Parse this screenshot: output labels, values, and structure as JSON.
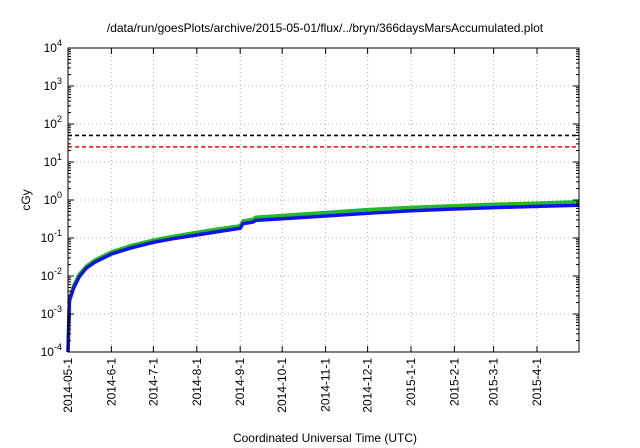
{
  "chart_data": {
    "type": "line",
    "title": "/data/run/goesPlots/archive/2015-05-01/flux/../bryn/366daysMarsAccumulated.plot",
    "xlabel": "Coordinated Universal Time (UTC)",
    "ylabel": "cGy",
    "x_range": [
      "2014-05-01",
      "2015-05-01"
    ],
    "y_scale": "log",
    "ylim": [
      0.0001,
      10000
    ],
    "grid": true,
    "legend": "none",
    "x_ticks": [
      {
        "date": "2014-05-01",
        "label": "2014-05-1"
      },
      {
        "date": "2014-06-01",
        "label": "2014-6-1"
      },
      {
        "date": "2014-07-01",
        "label": "2014-7-1"
      },
      {
        "date": "2014-08-01",
        "label": "2014-8-1"
      },
      {
        "date": "2014-09-01",
        "label": "2014-9-1"
      },
      {
        "date": "2014-10-01",
        "label": "2014-10-1"
      },
      {
        "date": "2014-11-01",
        "label": "2014-11-1"
      },
      {
        "date": "2014-12-01",
        "label": "2014-12-1"
      },
      {
        "date": "2015-01-01",
        "label": "2015-1-1"
      },
      {
        "date": "2015-02-01",
        "label": "2015-2-1"
      },
      {
        "date": "2015-03-01",
        "label": "2015-3-1"
      },
      {
        "date": "2015-04-01",
        "label": "2015-4-1"
      }
    ],
    "y_ticks": [
      {
        "value": 0.0001,
        "base": "10",
        "exp": "-4"
      },
      {
        "value": 0.001,
        "base": "10",
        "exp": "-3"
      },
      {
        "value": 0.01,
        "base": "10",
        "exp": "-2"
      },
      {
        "value": 0.1,
        "base": "10",
        "exp": "-1"
      },
      {
        "value": 1,
        "base": "10",
        "exp": "0"
      },
      {
        "value": 10,
        "base": "10",
        "exp": "1"
      },
      {
        "value": 100,
        "base": "10",
        "exp": "2"
      },
      {
        "value": 1000,
        "base": "10",
        "exp": "3"
      },
      {
        "value": 10000,
        "base": "10",
        "exp": "4"
      }
    ],
    "reference_lines": [
      {
        "value": 50,
        "color": "#000000",
        "style": "dashed"
      },
      {
        "value": 25,
        "color": "#ff0000",
        "style": "dashed"
      }
    ],
    "series": [
      {
        "color": "#22bb22",
        "points": [
          [
            "2014-05-01",
            0.0001
          ],
          [
            "2014-05-02",
            0.0025
          ],
          [
            "2014-05-05",
            0.0055
          ],
          [
            "2014-05-09",
            0.011
          ],
          [
            "2014-05-14",
            0.018
          ],
          [
            "2014-05-20",
            0.026
          ],
          [
            "2014-06-01",
            0.043
          ],
          [
            "2014-06-15",
            0.063
          ],
          [
            "2014-07-01",
            0.088
          ],
          [
            "2014-07-15",
            0.11
          ],
          [
            "2014-08-01",
            0.14
          ],
          [
            "2014-08-15",
            0.17
          ],
          [
            "2014-09-01",
            0.21
          ],
          [
            "2014-09-03",
            0.28
          ],
          [
            "2014-09-10",
            0.31
          ],
          [
            "2014-09-12",
            0.35
          ],
          [
            "2014-10-01",
            0.39
          ],
          [
            "2014-11-01",
            0.47
          ],
          [
            "2014-12-01",
            0.56
          ],
          [
            "2015-01-01",
            0.64
          ],
          [
            "2015-02-01",
            0.71
          ],
          [
            "2015-03-01",
            0.77
          ],
          [
            "2015-04-01",
            0.83
          ],
          [
            "2015-05-01",
            0.9
          ]
        ]
      },
      {
        "color": "#1111ee",
        "points": [
          [
            "2014-05-01",
            0.0001
          ],
          [
            "2014-05-02",
            0.0022
          ],
          [
            "2014-05-05",
            0.0048
          ],
          [
            "2014-05-09",
            0.0095
          ],
          [
            "2014-05-14",
            0.016
          ],
          [
            "2014-05-20",
            0.023
          ],
          [
            "2014-06-01",
            0.038
          ],
          [
            "2014-06-15",
            0.055
          ],
          [
            "2014-07-01",
            0.077
          ],
          [
            "2014-07-15",
            0.096
          ],
          [
            "2014-08-01",
            0.12
          ],
          [
            "2014-08-15",
            0.145
          ],
          [
            "2014-09-01",
            0.18
          ],
          [
            "2014-09-03",
            0.24
          ],
          [
            "2014-09-10",
            0.26
          ],
          [
            "2014-09-12",
            0.29
          ],
          [
            "2014-10-01",
            0.32
          ],
          [
            "2014-11-01",
            0.38
          ],
          [
            "2014-12-01",
            0.45
          ],
          [
            "2015-01-01",
            0.52
          ],
          [
            "2015-02-01",
            0.58
          ],
          [
            "2015-03-01",
            0.63
          ],
          [
            "2015-04-01",
            0.68
          ],
          [
            "2015-05-01",
            0.73
          ]
        ]
      }
    ]
  }
}
